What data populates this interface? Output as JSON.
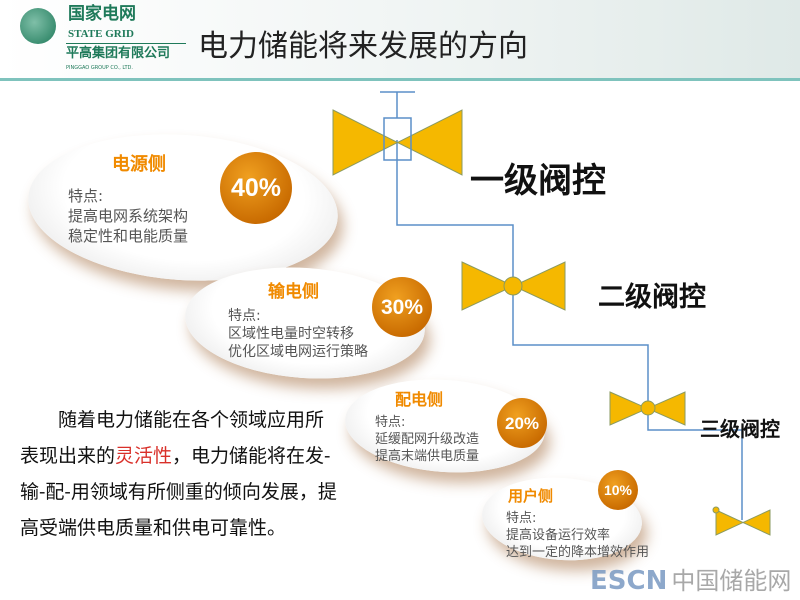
{
  "header": {
    "logo_cn": "国家电网",
    "logo_en": "STATE GRID",
    "company_cn": "平高集团有限公司",
    "company_en": "PINGGAO GROUP CO., LTD.",
    "title": "电力储能将来发展的方向"
  },
  "sections": [
    {
      "name": "电源侧",
      "percent": "40%",
      "feature_label": "特点:",
      "lines": [
        "提高电网系统架构",
        "稳定性和电能质量"
      ]
    },
    {
      "name": "输电侧",
      "percent": "30%",
      "feature_label": "特点:",
      "lines": [
        "区域性电量时空转移",
        "优化区域电网运行策略"
      ]
    },
    {
      "name": "配电侧",
      "percent": "20%",
      "feature_label": "特点:",
      "lines": [
        "延缓配网升级改造",
        "提高末端供电质量"
      ]
    },
    {
      "name": "用户侧",
      "percent": "10%",
      "feature_label": "特点:",
      "lines": [
        "提高设备运行效率",
        "达到一定的降本增效作用"
      ]
    }
  ],
  "levels": [
    "一级阀控",
    "二级阀控",
    "三级阀控"
  ],
  "paragraph": {
    "before": "随着电力储能在各个领域应用所表现出来的",
    "highlight": "灵活性",
    "after": "，电力储能将在发-输-配-用领域有所侧重的倾向发展，提高受端供电质量和供电可靠性。"
  },
  "watermark": {
    "en": "ESCN",
    "cn": "中国储能网"
  },
  "colors": {
    "valve": "#f5b800",
    "accent": "#f08a00",
    "highlight": "#d9302a",
    "header_green": "#1f7a5a",
    "line": "#5b8fc8"
  }
}
